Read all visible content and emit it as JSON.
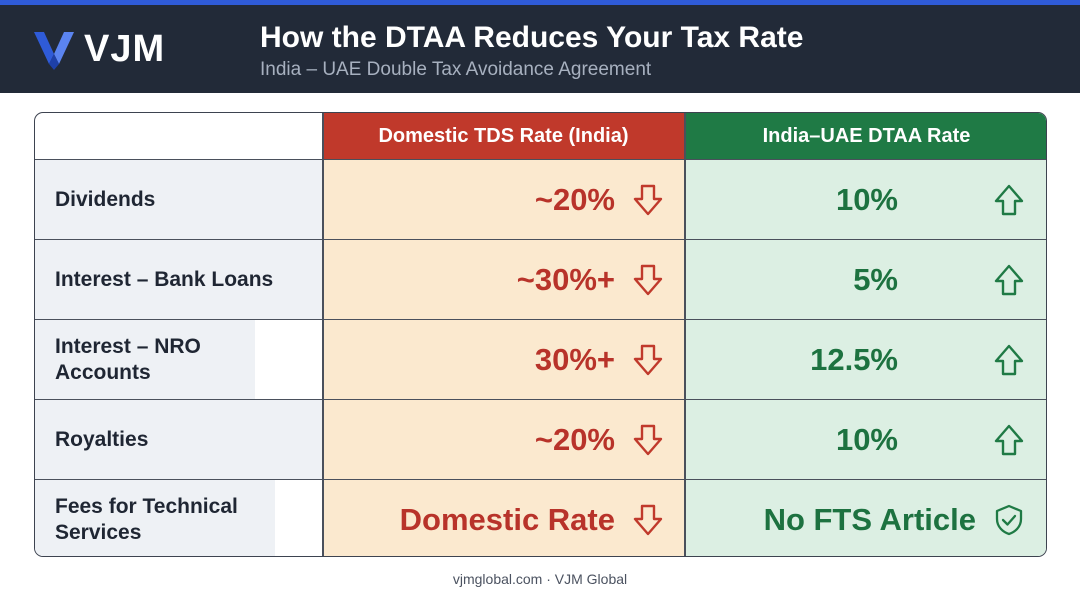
{
  "header": {
    "logo_text": "VJM",
    "title": "How the DTAA Reduces Your Tax Rate",
    "subtitle": "India – UAE Double Tax Avoidance Agreement"
  },
  "table": {
    "columns": [
      "",
      "Domestic TDS Rate (India)",
      "India–UAE DTAA Rate"
    ],
    "rows": [
      {
        "label": "Dividends",
        "domestic": "~20%",
        "dtaa": "10%",
        "domestic_icon": "arrow-down-icon",
        "dtaa_icon": "arrow-up-icon"
      },
      {
        "label": "Interest – Bank Loans",
        "domestic": "~30%+",
        "dtaa": "5%",
        "domestic_icon": "arrow-down-icon",
        "dtaa_icon": "arrow-up-icon"
      },
      {
        "label": "Interest – NRO Accounts",
        "domestic": "30%+",
        "dtaa": "12.5%",
        "domestic_icon": "arrow-down-icon",
        "dtaa_icon": "arrow-up-icon"
      },
      {
        "label": "Royalties",
        "domestic": "~20%",
        "dtaa": "10%",
        "domestic_icon": "arrow-down-icon",
        "dtaa_icon": "arrow-up-icon"
      },
      {
        "label": "Fees for Technical Services",
        "domestic": "Domestic Rate",
        "dtaa": "No FTS Article",
        "domestic_icon": "arrow-down-icon",
        "dtaa_icon": "shield-check-icon"
      }
    ]
  },
  "colors": {
    "domestic_accent": "#c0392b",
    "dtaa_accent": "#1f7a45",
    "header_bg": "#222a38",
    "logo_blue": "#2f5bd8"
  },
  "footer": {
    "text": "vjmglobal.com · VJM Global"
  }
}
